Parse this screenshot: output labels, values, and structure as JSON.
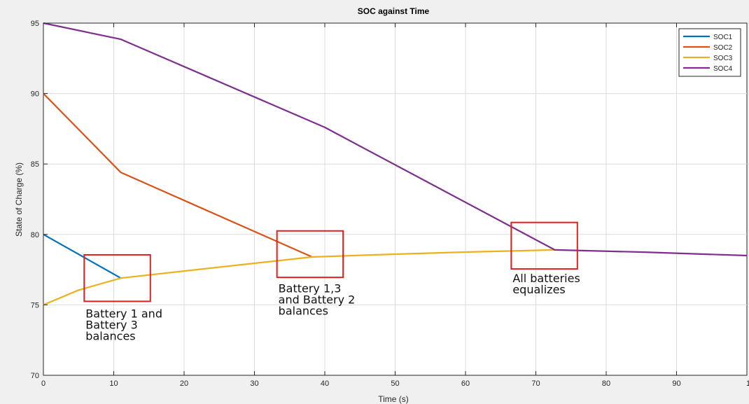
{
  "chart_data": {
    "type": "line",
    "title": "SOC against Time",
    "xlabel": "Time (s)",
    "ylabel": "State of Charge (%)",
    "xlim": [
      0,
      100
    ],
    "ylim": [
      70,
      95
    ],
    "xticks": [
      0,
      10,
      20,
      30,
      40,
      50,
      60,
      70,
      80,
      90
    ],
    "xtick_labels": [
      "0",
      "10",
      "20",
      "30",
      "40",
      "50",
      "60",
      "70",
      "80",
      "90"
    ],
    "edge_xtick_label": "10",
    "yticks": [
      70,
      75,
      80,
      85,
      90,
      95
    ],
    "ytick_labels": [
      "70",
      "75",
      "80",
      "85",
      "90",
      "95"
    ],
    "grid": true,
    "legend_position": "top-right",
    "series": [
      {
        "name": "SOC1",
        "color": "#0072bd",
        "x": [
          0,
          11
        ],
        "y": [
          80,
          76.9
        ]
      },
      {
        "name": "SOC2",
        "color": "#d95319",
        "x": [
          0,
          11,
          38.2
        ],
        "y": [
          90,
          84.4,
          78.4
        ]
      },
      {
        "name": "SOC3",
        "color": "#edb120",
        "x": [
          0,
          5,
          11,
          20,
          30,
          38.2,
          50,
          60,
          72.7
        ],
        "y": [
          75,
          76.05,
          76.9,
          77.4,
          77.95,
          78.4,
          78.6,
          78.75,
          78.9
        ]
      },
      {
        "name": "SOC4",
        "color": "#7e2f8e",
        "x": [
          0,
          11,
          40,
          72.7,
          85,
          100
        ],
        "y": [
          95,
          93.85,
          87.6,
          78.9,
          78.75,
          78.5
        ]
      }
    ],
    "annotations": [
      {
        "lines": [
          "Battery 1 and",
          "Battery 3",
          "balances"
        ],
        "box_x": [
          5.8,
          15.2
        ],
        "box_y": [
          75.25,
          78.55
        ],
        "text_x": 6,
        "text_y": 74.1
      },
      {
        "lines": [
          "Battery 1,3",
          "and Battery 2",
          "balances"
        ],
        "box_x": [
          33.2,
          42.6
        ],
        "box_y": [
          76.95,
          80.25
        ],
        "text_x": 33.4,
        "text_y": 75.9
      },
      {
        "lines": [
          "All batteries",
          "equalizes"
        ],
        "box_x": [
          66.5,
          75.9
        ],
        "box_y": [
          77.55,
          80.85
        ],
        "text_x": 66.7,
        "text_y": 76.6
      }
    ],
    "annotation_color": "#e02020"
  }
}
